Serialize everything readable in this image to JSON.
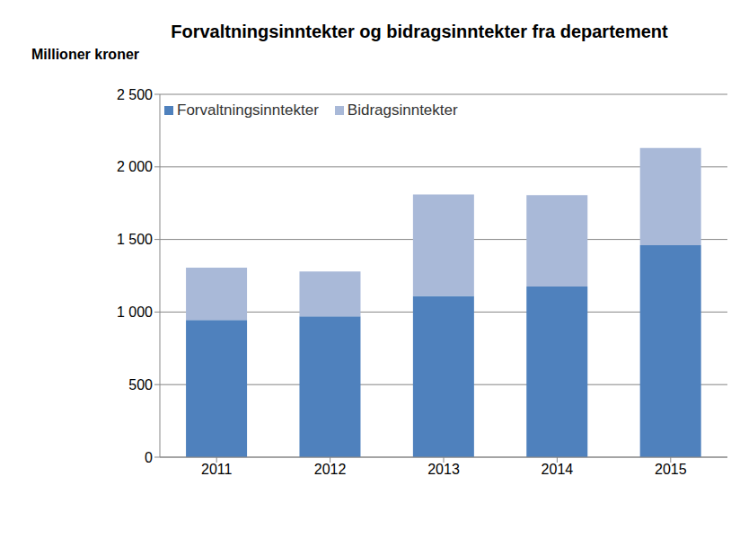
{
  "chart_data": {
    "type": "bar",
    "title": "Forvaltningsinntekter og bidragsinntekter fra departement",
    "y_label": "Millioner kroner",
    "categories": [
      "2011",
      "2012",
      "2013",
      "2014",
      "2015"
    ],
    "series": [
      {
        "name": "Forvaltningsinntekter",
        "color": "#4f81bd",
        "values": [
          945,
          970,
          1110,
          1175,
          1460
        ]
      },
      {
        "name": "Bidragsinntekter",
        "color": "#a9b9d8",
        "values": [
          360,
          310,
          700,
          630,
          670
        ]
      }
    ],
    "stacked": true,
    "ylim": [
      0,
      2500
    ],
    "yticks": [
      0,
      500,
      {
        "value": 1000,
        "label": "1 000"
      },
      {
        "value": 1500,
        "label": "1 500"
      },
      {
        "value": 2000,
        "label": "2 000"
      },
      {
        "value": 2500,
        "label": "2 500"
      }
    ],
    "grid": true,
    "legend": "top-left"
  }
}
